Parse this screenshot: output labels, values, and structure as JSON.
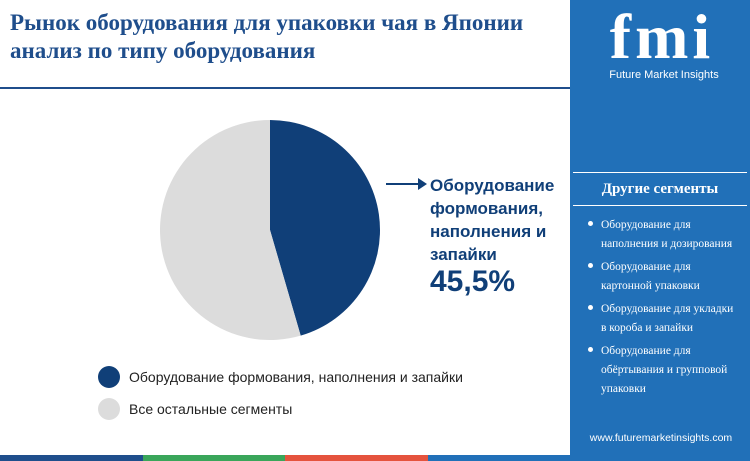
{
  "title": "Рынок оборудования для упаковки чая в Японии анализ по типу оборудования",
  "chart_data": {
    "type": "pie",
    "slices": [
      {
        "label": "Оборудование формования, наполнения и запайки",
        "value": 45.5,
        "color": "#103f78"
      },
      {
        "label": "Все остальные сегменты",
        "value": 54.5,
        "color": "#dcdcdc"
      }
    ],
    "callout": {
      "label": "Оборудование формования, наполнения и запайки",
      "value": "45,5%"
    },
    "legend": [
      {
        "label": "Оборудование формования, наполнения и запайки",
        "color": "#103f78"
      },
      {
        "label": "Все остальные сегменты",
        "color": "#dcdcdc"
      }
    ]
  },
  "sidebar": {
    "logo_text": "fmi",
    "logo_subtitle": "Future Market Insights",
    "heading": "Другие сегменты",
    "items": [
      "Оборудование для наполнения и дозирования",
      "Оборудование для картонной упаковки",
      "Оборудование для укладки в короба и запайки",
      "Оборудование для обёртывания и групповой упаковки"
    ],
    "url": "www.futuremarketinsights.com"
  },
  "colors": {
    "accent": "#1f4e8c",
    "sidebar_bg": "#2170b8",
    "bottom_bar": [
      "#1f4e8c",
      "#3aa65a",
      "#e5533d",
      "#2170b8"
    ]
  }
}
